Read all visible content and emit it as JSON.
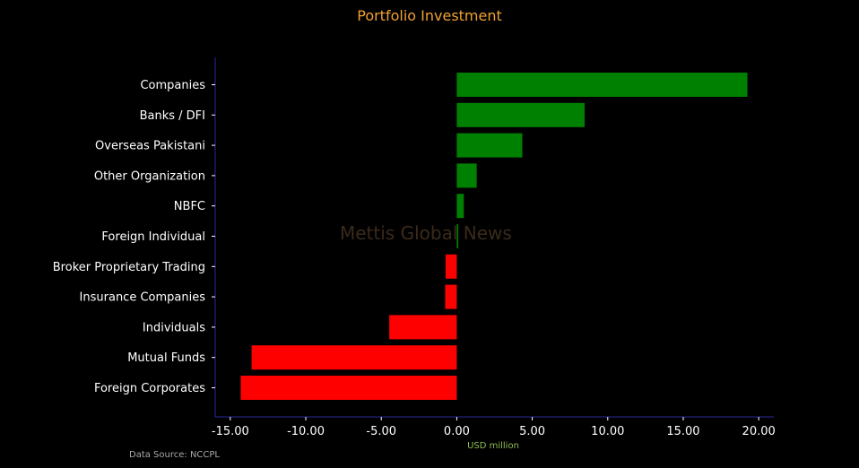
{
  "chart_data": {
    "type": "bar",
    "orientation": "horizontal",
    "title": "Portfolio Investment",
    "xlabel": "USD million",
    "ylabel": "",
    "categories": [
      "Companies",
      "Banks / DFI",
      "Overseas Pakistani",
      "Other Organization",
      "NBFC",
      "Foreign Individual",
      "Broker Proprietary Trading",
      "Insurance Companies",
      "Individuals",
      "Mutual Funds",
      "Foreign Corporates "
    ],
    "values": [
      19.25,
      8.47,
      4.34,
      1.32,
      0.47,
      0.1,
      -0.74,
      -0.77,
      -4.47,
      -13.59,
      -14.31
    ],
    "xlim": [
      -16.0,
      21.0
    ],
    "xticks": [
      -15,
      -10,
      -5,
      0,
      5,
      10,
      15,
      20
    ],
    "xtick_labels": [
      "-15.00",
      "-10.00",
      "-5.00",
      "0.00",
      "5.00",
      "10.00",
      "15.00",
      "20.00"
    ],
    "colors": {
      "positive": "#008000",
      "negative": "#ff0000",
      "axis": "#2a2a9a",
      "text": "#ffffff"
    },
    "grid": false,
    "legend": "none"
  },
  "source": "Data Source: NCCPL",
  "watermark": "Mettis Global News"
}
